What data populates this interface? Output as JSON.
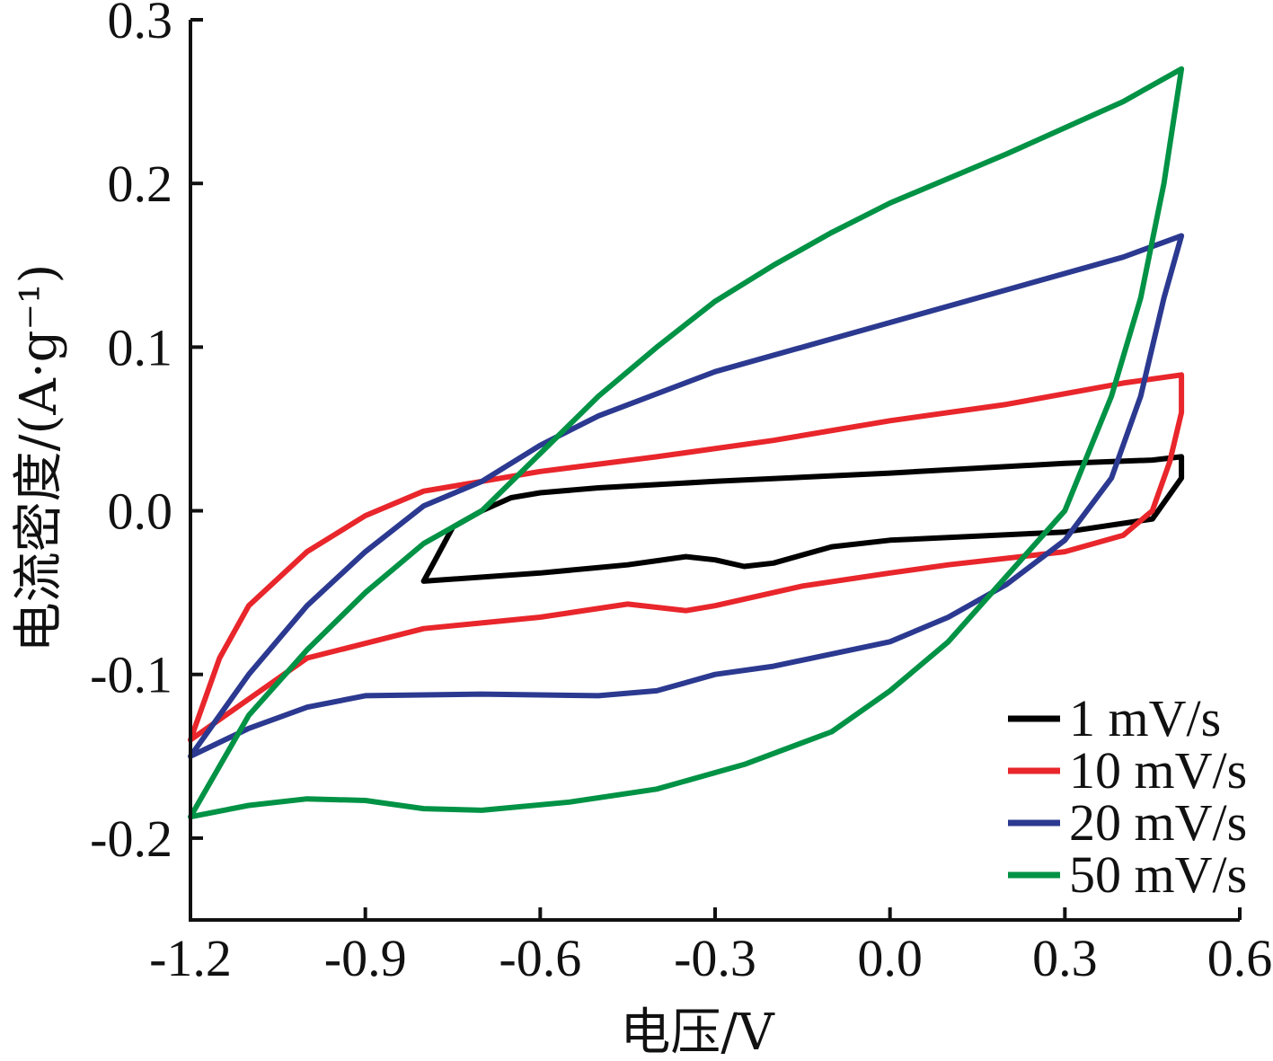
{
  "chart_data": {
    "type": "line",
    "xlabel": "电压/V",
    "ylabel": "电流密度/(A·g⁻¹)",
    "xlim": [
      -1.2,
      0.6
    ],
    "ylim": [
      -0.25,
      0.3
    ],
    "x_ticks": [
      -1.2,
      -0.9,
      -0.6,
      -0.3,
      0.0,
      0.3,
      0.6
    ],
    "x_tick_labels": [
      "-1.2",
      "-0.9",
      "-0.6",
      "-0.3",
      "0.0",
      "0.3",
      "0.6"
    ],
    "y_ticks": [
      -0.2,
      -0.1,
      0.0,
      0.1,
      0.2,
      0.3
    ],
    "y_tick_labels": [
      "-0.2",
      "-0.1",
      "0.0",
      "0.1",
      "0.2",
      "0.3"
    ],
    "grid": false,
    "legend_position": "bottom-right",
    "series": [
      {
        "name": "1 mV/s",
        "color": "#000000",
        "points": [
          [
            -0.8,
            -0.043
          ],
          [
            -0.78,
            -0.03
          ],
          [
            -0.75,
            -0.01
          ],
          [
            -0.7,
            0.0
          ],
          [
            -0.65,
            0.008
          ],
          [
            -0.6,
            0.011
          ],
          [
            -0.5,
            0.014
          ],
          [
            -0.3,
            0.018
          ],
          [
            0.0,
            0.023
          ],
          [
            0.3,
            0.029
          ],
          [
            0.45,
            0.031
          ],
          [
            0.5,
            0.033
          ],
          [
            0.5,
            0.02
          ],
          [
            0.45,
            -0.005
          ],
          [
            0.3,
            -0.013
          ],
          [
            0.0,
            -0.018
          ],
          [
            -0.1,
            -0.022
          ],
          [
            -0.2,
            -0.032
          ],
          [
            -0.25,
            -0.034
          ],
          [
            -0.3,
            -0.03
          ],
          [
            -0.35,
            -0.028
          ],
          [
            -0.45,
            -0.033
          ],
          [
            -0.6,
            -0.038
          ],
          [
            -0.8,
            -0.043
          ]
        ]
      },
      {
        "name": "10 mV/s",
        "color": "#e8262b",
        "points": [
          [
            -1.2,
            -0.14
          ],
          [
            -1.15,
            -0.09
          ],
          [
            -1.1,
            -0.058
          ],
          [
            -1.0,
            -0.025
          ],
          [
            -0.9,
            -0.003
          ],
          [
            -0.8,
            0.012
          ],
          [
            -0.7,
            0.018
          ],
          [
            -0.6,
            0.024
          ],
          [
            -0.4,
            0.033
          ],
          [
            -0.2,
            0.043
          ],
          [
            0.0,
            0.055
          ],
          [
            0.2,
            0.065
          ],
          [
            0.4,
            0.078
          ],
          [
            0.5,
            0.083
          ],
          [
            0.5,
            0.06
          ],
          [
            0.48,
            0.03
          ],
          [
            0.45,
            0.0
          ],
          [
            0.4,
            -0.015
          ],
          [
            0.3,
            -0.025
          ],
          [
            0.1,
            -0.033
          ],
          [
            0.0,
            -0.038
          ],
          [
            -0.15,
            -0.046
          ],
          [
            -0.3,
            -0.058
          ],
          [
            -0.35,
            -0.061
          ],
          [
            -0.45,
            -0.057
          ],
          [
            -0.6,
            -0.065
          ],
          [
            -0.8,
            -0.072
          ],
          [
            -1.0,
            -0.09
          ],
          [
            -1.1,
            -0.115
          ],
          [
            -1.2,
            -0.14
          ]
        ]
      },
      {
        "name": "20 mV/s",
        "color": "#2b3990",
        "points": [
          [
            -1.2,
            -0.15
          ],
          [
            -1.1,
            -0.1
          ],
          [
            -1.0,
            -0.058
          ],
          [
            -0.9,
            -0.025
          ],
          [
            -0.8,
            0.003
          ],
          [
            -0.7,
            0.018
          ],
          [
            -0.6,
            0.04
          ],
          [
            -0.5,
            0.058
          ],
          [
            -0.3,
            0.085
          ],
          [
            0.0,
            0.115
          ],
          [
            0.2,
            0.135
          ],
          [
            0.4,
            0.155
          ],
          [
            0.5,
            0.168
          ],
          [
            0.47,
            0.13
          ],
          [
            0.43,
            0.07
          ],
          [
            0.38,
            0.02
          ],
          [
            0.3,
            -0.018
          ],
          [
            0.2,
            -0.045
          ],
          [
            0.1,
            -0.065
          ],
          [
            0.0,
            -0.08
          ],
          [
            -0.2,
            -0.095
          ],
          [
            -0.3,
            -0.1
          ],
          [
            -0.4,
            -0.11
          ],
          [
            -0.5,
            -0.113
          ],
          [
            -0.7,
            -0.112
          ],
          [
            -0.9,
            -0.113
          ],
          [
            -1.0,
            -0.12
          ],
          [
            -1.1,
            -0.133
          ],
          [
            -1.2,
            -0.15
          ]
        ]
      },
      {
        "name": "50 mV/s",
        "color": "#009245",
        "points": [
          [
            -1.2,
            -0.187
          ],
          [
            -1.1,
            -0.125
          ],
          [
            -1.0,
            -0.085
          ],
          [
            -0.9,
            -0.05
          ],
          [
            -0.8,
            -0.02
          ],
          [
            -0.7,
            0.0
          ],
          [
            -0.6,
            0.035
          ],
          [
            -0.5,
            0.07
          ],
          [
            -0.4,
            0.1
          ],
          [
            -0.3,
            0.128
          ],
          [
            -0.2,
            0.15
          ],
          [
            -0.1,
            0.17
          ],
          [
            0.0,
            0.188
          ],
          [
            0.2,
            0.218
          ],
          [
            0.4,
            0.25
          ],
          [
            0.5,
            0.27
          ],
          [
            0.47,
            0.2
          ],
          [
            0.43,
            0.13
          ],
          [
            0.38,
            0.07
          ],
          [
            0.3,
            0.0
          ],
          [
            0.2,
            -0.04
          ],
          [
            0.1,
            -0.08
          ],
          [
            0.0,
            -0.11
          ],
          [
            -0.1,
            -0.135
          ],
          [
            -0.25,
            -0.155
          ],
          [
            -0.4,
            -0.17
          ],
          [
            -0.55,
            -0.178
          ],
          [
            -0.7,
            -0.183
          ],
          [
            -0.8,
            -0.182
          ],
          [
            -0.9,
            -0.177
          ],
          [
            -1.0,
            -0.176
          ],
          [
            -1.1,
            -0.18
          ],
          [
            -1.2,
            -0.187
          ]
        ]
      }
    ]
  }
}
